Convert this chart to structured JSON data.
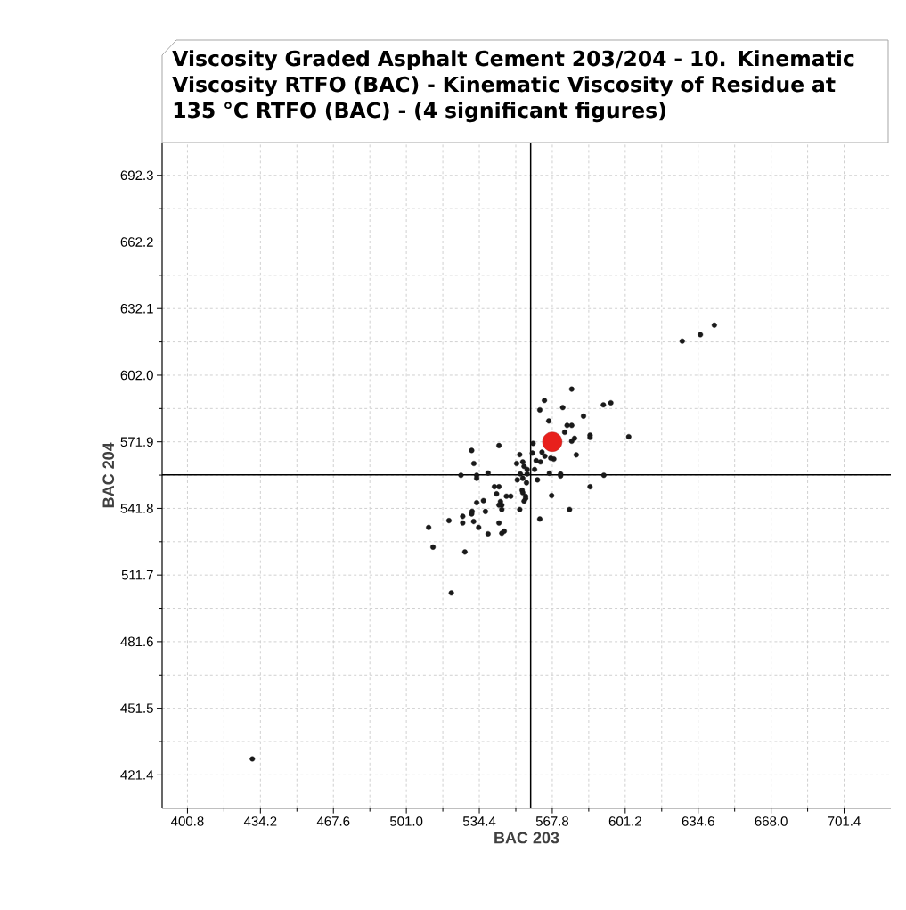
{
  "chart_data": {
    "type": "scatter",
    "title": "Viscosity Graded Asphalt Cement 203/204 - 10. Kinematic Viscosity RTFO (BAC) - Kinematic Viscosity of Residue at 135 °C RTFO (BAC) - (4 significant figures)",
    "xlabel": "BAC 203",
    "ylabel": "BAC 204",
    "xlim": [
      389.2,
      722.8
    ],
    "ylim": [
      406.4,
      707.1
    ],
    "xticks": [
      400.8,
      434.2,
      467.6,
      {
        "value": 501.0,
        "label": "501.0"
      },
      534.4,
      567.8,
      601.2,
      634.6,
      {
        "value": 668.0,
        "label": "668.0"
      },
      701.4
    ],
    "yticks": [
      421.4,
      451.5,
      481.6,
      511.7,
      541.8,
      571.9,
      {
        "value": 602.0,
        "label": "602.0"
      },
      632.1,
      662.2,
      692.3
    ],
    "grid": true,
    "marker": "circle",
    "ref_lines": [
      {
        "axis": "x",
        "value": 557.9,
        "color": "#000000"
      },
      {
        "axis": "y",
        "value": 557.0,
        "color": "#000000"
      }
    ],
    "series": [
      {
        "color": "#1a1a1a",
        "x": [
          576.7,
          564.2,
          562.1,
          572.6,
          591.2,
          594.6,
          566.2,
          582.1,
          574.6,
          576.7,
          573.5,
          585.1,
          585.1,
          602.8,
          578.0,
          576.7,
          559.0,
          543.4,
          530.9,
          578.8,
          552.9,
          558.7,
          563.1,
          564.4,
          568.5,
          567.1,
          560.4,
          562.4,
          531.9,
          551.5,
          554.3,
          554.9,
          559.7,
          556.3,
          538.4,
          526.0,
          533.2,
          533.2,
          553.2,
          556.3,
          566.5,
          571.6,
          571.6,
          591.4,
          551.8,
          554.3,
          561.0,
          556.0,
          541.3,
          543.4,
          554.0,
          554.3,
          585.1,
          542.3,
          546.8,
          548.8,
          555.6,
          555.6,
          554.9,
          567.5,
          544.1,
          544.7,
          543.4,
          536.3,
          533.2,
          575.7,
          552.9,
          531.1,
          530.9,
          537.2,
          544.7,
          526.8,
          526.8,
          520.5,
          531.8,
          534.1,
          543.4,
          538.4,
          544.7,
          545.8,
          562.1,
          511.2,
          513.2,
          527.8,
          521.6,
          627.3,
          635.6,
          642.0,
          430.5
        ],
        "values": [
          595.7,
          590.6,
          586.3,
          587.4,
          588.6,
          589.5,
          581.3,
          583.5,
          579.3,
          579.3,
          576.2,
          574.9,
          573.9,
          574.2,
          573.5,
          572.2,
          571.2,
          570.2,
          568.0,
          566.0,
          566.1,
          566.8,
          567.2,
          565.4,
          564.1,
          564.5,
          563.4,
          562.8,
          562.1,
          562.1,
          562.8,
          560.8,
          559.4,
          559.4,
          557.8,
          556.8,
          556.8,
          555.4,
          557.4,
          557.4,
          557.7,
          557.4,
          556.5,
          556.8,
          554.7,
          555.4,
          554.7,
          553.4,
          551.6,
          551.6,
          550.0,
          548.9,
          551.6,
          548.4,
          547.3,
          547.3,
          547.3,
          546.3,
          545.1,
          547.6,
          544.9,
          543.3,
          543.3,
          545.3,
          544.4,
          541.3,
          541.3,
          540.4,
          539.3,
          540.4,
          541.3,
          538.2,
          535.2,
          536.3,
          535.9,
          533.2,
          535.2,
          530.3,
          530.6,
          531.5,
          537.0,
          533.2,
          524.3,
          522.1,
          503.6,
          617.4,
          620.3,
          624.6,
          428.6
        ]
      },
      {
        "color": "#e8201c",
        "x": [
          567.8
        ],
        "values": [
          571.9
        ]
      }
    ]
  }
}
